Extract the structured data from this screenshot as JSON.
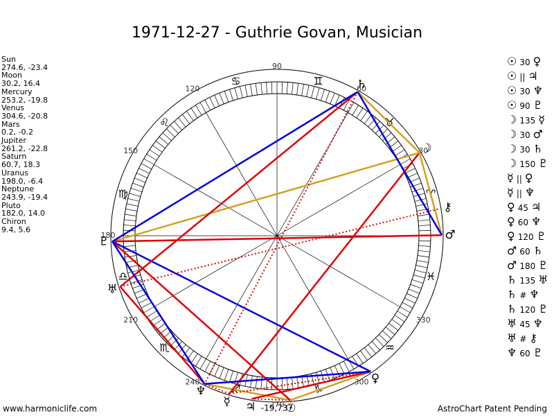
{
  "header": {
    "title": "1971-12-27 - Guthrie Govan, Musician"
  },
  "planets": [
    {
      "name": "Sun",
      "coords": "274.6, -23.4",
      "glyph": "☉"
    },
    {
      "name": "Moon",
      "coords": "30.2, 16.4",
      "glyph": "☽"
    },
    {
      "name": "Mercury",
      "coords": "253.2, -19.8",
      "glyph": "☿"
    },
    {
      "name": "Venus",
      "coords": "304.6, -20.8",
      "glyph": "♀"
    },
    {
      "name": "Mars",
      "coords": "0.2, -0.2",
      "glyph": "♂"
    },
    {
      "name": "Jupiter",
      "coords": "261.2, -22.8",
      "glyph": "♃"
    },
    {
      "name": "Saturn",
      "coords": "60.7, 18.3",
      "glyph": "♄"
    },
    {
      "name": "Uranus",
      "coords": "198.0, -6.4",
      "glyph": "♅"
    },
    {
      "name": "Neptune",
      "coords": "243.9, -19.4",
      "glyph": "♆"
    },
    {
      "name": "Pluto",
      "coords": "182.0, 14.0",
      "glyph": "♇"
    },
    {
      "name": "Chiron",
      "coords": "9.4, 5.6",
      "glyph": "⚷"
    }
  ],
  "aspects": [
    {
      "parts": [
        "☉",
        "30",
        "♀"
      ],
      "color": "#d4a020",
      "style": "solid"
    },
    {
      "parts": [
        "☉",
        "||",
        "♃"
      ],
      "color": "#e00000",
      "style": "dotted"
    },
    {
      "parts": [
        "☉",
        "30",
        "♆"
      ],
      "color": "#d4a020",
      "style": "solid"
    },
    {
      "parts": [
        "☉",
        "90",
        "♇"
      ],
      "color": "#e00000",
      "style": "solid"
    },
    {
      "parts": [
        "☽",
        "135",
        "☿"
      ],
      "color": "#e00000",
      "style": "solid"
    },
    {
      "parts": [
        "☽",
        "30",
        "♂"
      ],
      "color": "#d4a020",
      "style": "solid"
    },
    {
      "parts": [
        "☽",
        "30",
        "♄"
      ],
      "color": "#d4a020",
      "style": "solid"
    },
    {
      "parts": [
        "☽",
        "150",
        "♇"
      ],
      "color": "#d4a020",
      "style": "solid"
    },
    {
      "parts": [
        "☿",
        "||",
        "♀"
      ],
      "color": "#e00000",
      "style": "dotted"
    },
    {
      "parts": [
        "☿",
        "||",
        "♆"
      ],
      "color": "#e00000",
      "style": "dotted"
    },
    {
      "parts": [
        "♀",
        "45",
        "♃"
      ],
      "color": "#e00000",
      "style": "solid"
    },
    {
      "parts": [
        "♀",
        "60",
        "♆"
      ],
      "color": "#0000e0",
      "style": "solid"
    },
    {
      "parts": [
        "♀",
        "120",
        "♇"
      ],
      "color": "#0000e0",
      "style": "solid"
    },
    {
      "parts": [
        "♂",
        "60",
        "♄"
      ],
      "color": "#0000e0",
      "style": "solid"
    },
    {
      "parts": [
        "♂",
        "180",
        "♇"
      ],
      "color": "#e00000",
      "style": "solid"
    },
    {
      "parts": [
        "♄",
        "135",
        "♅"
      ],
      "color": "#e00000",
      "style": "solid"
    },
    {
      "parts": [
        "♄",
        "#",
        "♆"
      ],
      "color": "#e00000",
      "style": "dotted"
    },
    {
      "parts": [
        "♄",
        "120",
        "♇"
      ],
      "color": "#0000e0",
      "style": "solid"
    },
    {
      "parts": [
        "♅",
        "45",
        "♆"
      ],
      "color": "#e00000",
      "style": "solid"
    },
    {
      "parts": [
        "♅",
        "#",
        "⚷"
      ],
      "color": "#e00000",
      "style": "dotted"
    },
    {
      "parts": [
        "♆",
        "60",
        "♇"
      ],
      "color": "#0000e0",
      "style": "solid"
    }
  ],
  "zodiac": [
    "♈",
    "♉",
    "♊",
    "♋",
    "♌",
    "♍",
    "♎",
    "♏",
    "♐",
    "♑",
    "♒",
    "♓"
  ],
  "degree_labels": [
    30,
    60,
    90,
    120,
    150,
    180,
    210,
    240,
    270,
    300,
    330
  ],
  "note": "-19,737",
  "footer": {
    "left": "www.harmoniclife.com",
    "right": "AstroChart Patent Pending"
  }
}
